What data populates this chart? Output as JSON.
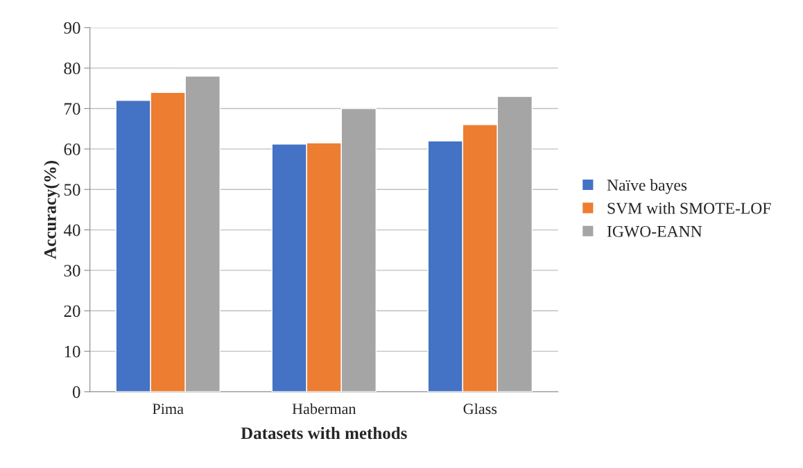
{
  "chart_data": {
    "type": "bar",
    "xlabel": "Datasets with methods",
    "ylabel": "Accuracy(%)",
    "categories": [
      "Pima",
      "Haberman",
      "Glass"
    ],
    "series": [
      {
        "name": "Naïve bayes",
        "color": "#4472c4",
        "values": [
          72,
          61.2,
          62
        ]
      },
      {
        "name": "SVM with SMOTE-LOF",
        "color": "#ed7d31",
        "values": [
          74,
          61.5,
          66
        ]
      },
      {
        "name": "IGWO-EANN",
        "color": "#a5a5a5",
        "values": [
          78,
          70,
          73
        ]
      }
    ],
    "ylim": [
      0,
      90
    ],
    "yticks": [
      0,
      10,
      20,
      30,
      40,
      50,
      60,
      70,
      80,
      90
    ],
    "grid": "y",
    "legend": "right"
  }
}
